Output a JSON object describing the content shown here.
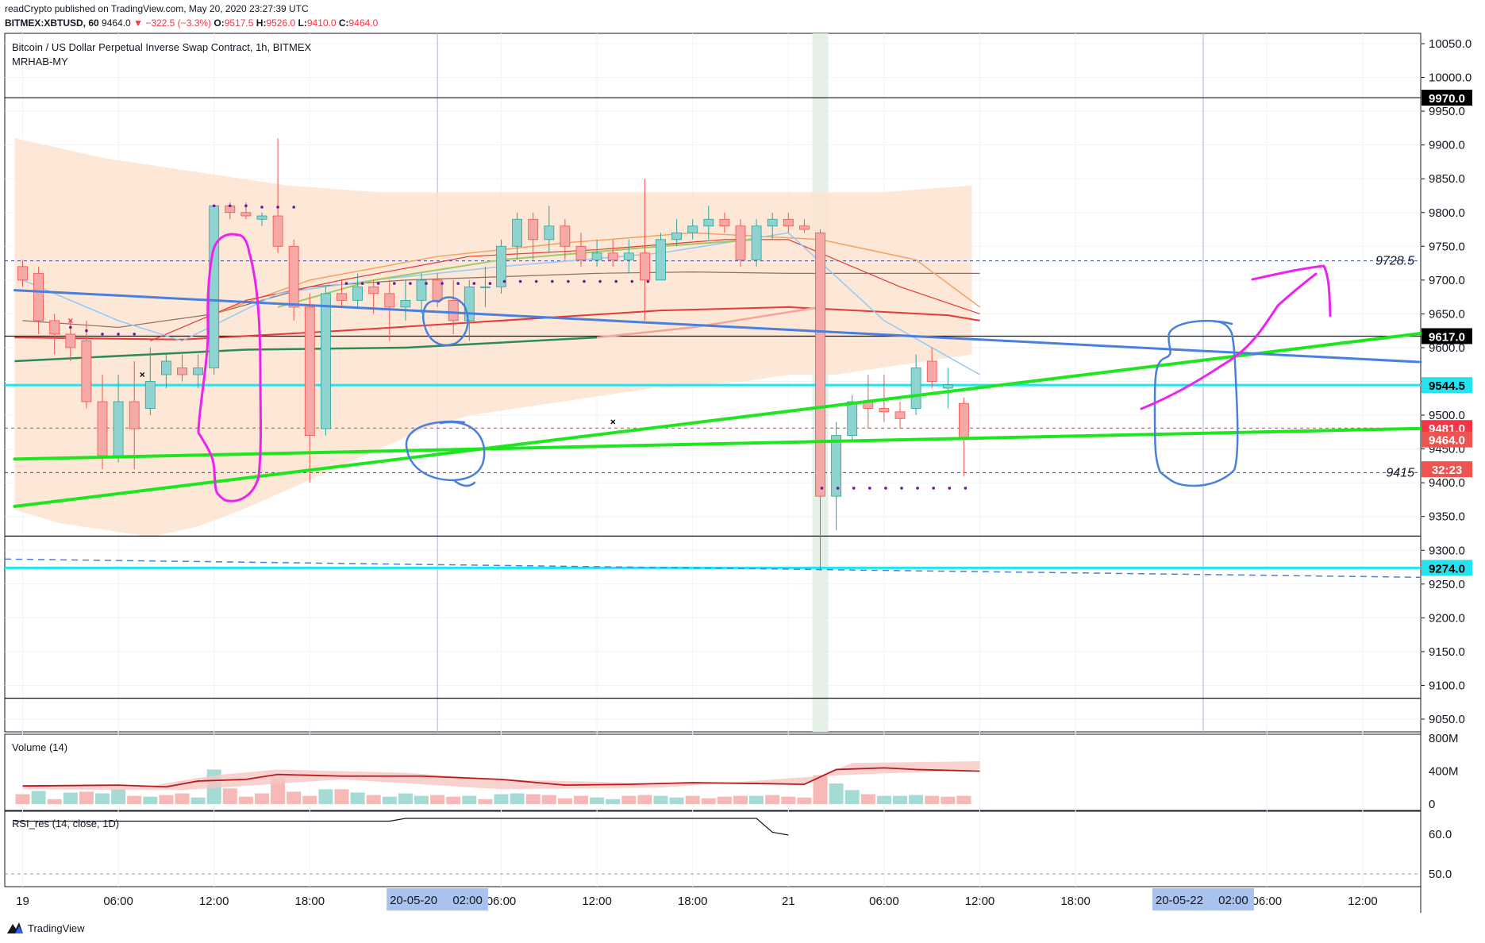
{
  "header": {
    "publisher_line": "readCrypto published on TradingView.com, May 20, 2020 23:27:39 UTC",
    "symbol": "BITMEX:XBTUSD, 60",
    "last": "9464.0",
    "change": "−322.5 (−3.3%)",
    "o_label": "O:",
    "o": "9517.5",
    "h_label": "H:",
    "h": "9526.0",
    "l_label": "L:",
    "l": "9410.0",
    "c_label": "C:",
    "c": "9464.0"
  },
  "legend": {
    "title": "Bitcoin / US Dollar Perpetual Inverse Swap Contract, 1h, BITMEX",
    "indicator": "MRHAB-MY"
  },
  "volume_pane": {
    "label": "Volume (14)",
    "ticks": [
      "800M",
      "400M",
      "0"
    ]
  },
  "rsi_pane": {
    "label": "RSI_res (14, close, 1D)",
    "ticks": [
      "60.0",
      "50.0"
    ]
  },
  "brand": "TradingView",
  "colors": {
    "up": "#8ed3cf",
    "down": "#f4a9a6",
    "green_line": "#1ee61e",
    "blue_line": "#4a7fdc",
    "cyan_line": "#22e3ee",
    "magenta": "#ee22ee",
    "cloud": "#fde3d0",
    "marker_red": "#f23645",
    "marker_black": "#000000"
  },
  "chart_data": {
    "type": "candlestick",
    "symbol": "XBTUSD",
    "interval": "1h",
    "ylim": [
      9030,
      10070
    ],
    "y_ticks": [
      9050,
      9100,
      9150,
      9200,
      9250,
      9300,
      9350,
      9400,
      9450,
      9500,
      9550,
      9600,
      9650,
      9700,
      9750,
      9800,
      9850,
      9900,
      9950,
      10000,
      10050
    ],
    "x_ticks": [
      {
        "label": "19",
        "h": 0
      },
      {
        "label": "06:00",
        "h": 6
      },
      {
        "label": "12:00",
        "h": 12
      },
      {
        "label": "18:00",
        "h": 18
      },
      {
        "label": "06:00",
        "h": 30
      },
      {
        "label": "12:00",
        "h": 36
      },
      {
        "label": "18:00",
        "h": 42
      },
      {
        "label": "21",
        "h": 48
      },
      {
        "label": "06:00",
        "h": 54
      },
      {
        "label": "12:00",
        "h": 60
      },
      {
        "label": "18:00",
        "h": 66
      },
      {
        "label": "06:00",
        "h": 78
      },
      {
        "label": "12:00",
        "h": 84
      }
    ],
    "x_highlights": [
      {
        "label": "20-05-20",
        "time": "02:00",
        "h": 26
      },
      {
        "label": "20-05-22",
        "time": "02:00",
        "h": 74
      }
    ],
    "price_labels": [
      {
        "value": "9970.0",
        "price": 9970,
        "style": "black"
      },
      {
        "value": "9617.0",
        "price": 9617,
        "style": "black"
      },
      {
        "value": "9544.5",
        "price": 9544.5,
        "style": "cyan"
      },
      {
        "value": "9481.0",
        "price": 9481,
        "style": "red"
      },
      {
        "value": "9464.0",
        "price": 9464,
        "style": "lightred"
      },
      {
        "value": "32:23",
        "price": 9420,
        "style": "lightred"
      },
      {
        "value": "9274.0",
        "price": 9274,
        "style": "cyan"
      }
    ],
    "level_annotations": [
      {
        "label": "9728.5",
        "price": 9728.5
      },
      {
        "label": "9415",
        "price": 9415
      }
    ],
    "candles": [
      [
        9720,
        9730,
        9690,
        9700
      ],
      [
        9710,
        9720,
        9620,
        9640
      ],
      [
        9640,
        9650,
        9590,
        9620
      ],
      [
        9620,
        9640,
        9580,
        9600
      ],
      [
        9610,
        9640,
        9510,
        9520
      ],
      [
        9520,
        9560,
        9420,
        9440
      ],
      [
        9440,
        9560,
        9430,
        9520
      ],
      [
        9520,
        9580,
        9420,
        9480
      ],
      [
        9510,
        9600,
        9500,
        9550
      ],
      [
        9560,
        9590,
        9540,
        9580
      ],
      [
        9570,
        9590,
        9550,
        9560
      ],
      [
        9560,
        9590,
        9540,
        9570
      ],
      [
        9570,
        9810,
        9560,
        9810
      ],
      [
        9810,
        9815,
        9790,
        9800
      ],
      [
        9800,
        9815,
        9790,
        9795
      ],
      [
        9790,
        9800,
        9780,
        9795
      ],
      [
        9795,
        9910,
        9740,
        9750
      ],
      [
        9750,
        9760,
        9640,
        9660
      ],
      [
        9660,
        9680,
        9400,
        9470
      ],
      [
        9480,
        9690,
        9470,
        9680
      ],
      [
        9680,
        9700,
        9660,
        9670
      ],
      [
        9670,
        9710,
        9660,
        9690
      ],
      [
        9690,
        9700,
        9650,
        9680
      ],
      [
        9680,
        9700,
        9610,
        9660
      ],
      [
        9660,
        9700,
        9640,
        9670
      ],
      [
        9670,
        9710,
        9650,
        9700
      ],
      [
        9700,
        9710,
        9660,
        9670
      ],
      [
        9670,
        9700,
        9620,
        9640
      ],
      [
        9640,
        9700,
        9610,
        9690
      ],
      [
        9690,
        9720,
        9660,
        9690
      ],
      [
        9690,
        9760,
        9680,
        9750
      ],
      [
        9750,
        9800,
        9730,
        9790
      ],
      [
        9790,
        9800,
        9730,
        9760
      ],
      [
        9760,
        9810,
        9740,
        9780
      ],
      [
        9780,
        9790,
        9730,
        9750
      ],
      [
        9750,
        9770,
        9720,
        9730
      ],
      [
        9730,
        9760,
        9720,
        9740
      ],
      [
        9740,
        9760,
        9720,
        9730
      ],
      [
        9730,
        9760,
        9710,
        9740
      ],
      [
        9740,
        9850,
        9640,
        9700
      ],
      [
        9700,
        9770,
        9700,
        9760
      ],
      [
        9760,
        9790,
        9750,
        9770
      ],
      [
        9770,
        9790,
        9760,
        9780
      ],
      [
        9780,
        9810,
        9760,
        9790
      ],
      [
        9790,
        9800,
        9770,
        9780
      ],
      [
        9780,
        9790,
        9720,
        9730
      ],
      [
        9730,
        9790,
        9720,
        9780
      ],
      [
        9780,
        9800,
        9760,
        9790
      ],
      [
        9790,
        9800,
        9770,
        9780
      ],
      [
        9780,
        9790,
        9770,
        9775
      ],
      [
        9770,
        9775,
        9270,
        9380
      ],
      [
        9380,
        9490,
        9330,
        9470
      ],
      [
        9470,
        9530,
        9460,
        9520
      ],
      [
        9520,
        9560,
        9480,
        9510
      ],
      [
        9510,
        9560,
        9490,
        9505
      ],
      [
        9505,
        9520,
        9480,
        9495
      ],
      [
        9510,
        9590,
        9500,
        9570
      ],
      [
        9580,
        9600,
        9540,
        9550
      ],
      [
        9540,
        9570,
        9510,
        9545
      ],
      [
        9517.5,
        9526,
        9410,
        9464
      ]
    ],
    "trendlines": [
      {
        "name": "green-upper",
        "from": [
          -0.5,
          9365
        ],
        "to": [
          89,
          9625
        ],
        "color": "#1ee61e"
      },
      {
        "name": "green-lower",
        "from": [
          -0.5,
          9435
        ],
        "to": [
          89,
          9481
        ],
        "color": "#1ee61e"
      },
      {
        "name": "blue-falling",
        "from": [
          -0.5,
          9685
        ],
        "to": [
          89,
          9577
        ],
        "color": "#4a7fdc"
      }
    ],
    "horizontal_levels": [
      {
        "price": 9970,
        "style": "black"
      },
      {
        "price": 9617,
        "style": "black"
      },
      {
        "price": 9321,
        "style": "black"
      },
      {
        "price": 9081,
        "style": "black"
      },
      {
        "price": 9544.5,
        "style": "cyan"
      },
      {
        "price": 9274,
        "style": "cyan"
      },
      {
        "price": 9728.5,
        "style": "blue-dashed"
      },
      {
        "price": 9415,
        "style": "blue-dashed"
      },
      {
        "price": 9481,
        "style": "red-dashed"
      }
    ],
    "volume": {
      "ylim": [
        0,
        800
      ],
      "bars": [
        120,
        160,
        60,
        140,
        150,
        130,
        180,
        100,
        90,
        110,
        130,
        80,
        420,
        190,
        90,
        130,
        320,
        150,
        100,
        180,
        180,
        140,
        110,
        90,
        130,
        100,
        110,
        90,
        100,
        60,
        120,
        130,
        120,
        110,
        70,
        100,
        80,
        60,
        100,
        110,
        100,
        80,
        100,
        70,
        90,
        100,
        100,
        110,
        90,
        80,
        350,
        250,
        170,
        120,
        100,
        100,
        110,
        100,
        90,
        100
      ],
      "up_flags": [
        0,
        1,
        0,
        1,
        0,
        1,
        1,
        0,
        1,
        0,
        0,
        1,
        1,
        0,
        0,
        0,
        0,
        0,
        0,
        1,
        0,
        1,
        0,
        1,
        1,
        1,
        0,
        0,
        1,
        0,
        1,
        1,
        0,
        0,
        0,
        0,
        1,
        1,
        0,
        0,
        1,
        1,
        0,
        0,
        0,
        0,
        1,
        0,
        0,
        0,
        0,
        1,
        1,
        0,
        1,
        1,
        1,
        0,
        0,
        0
      ]
    },
    "rsi": {
      "ylim": [
        48,
        66
      ],
      "points": [
        [
          -0.5,
          63.3
        ],
        [
          23,
          63.3
        ],
        [
          24,
          64.0
        ],
        [
          46,
          64.0
        ],
        [
          47,
          60.5
        ],
        [
          48,
          59.8
        ]
      ]
    }
  }
}
